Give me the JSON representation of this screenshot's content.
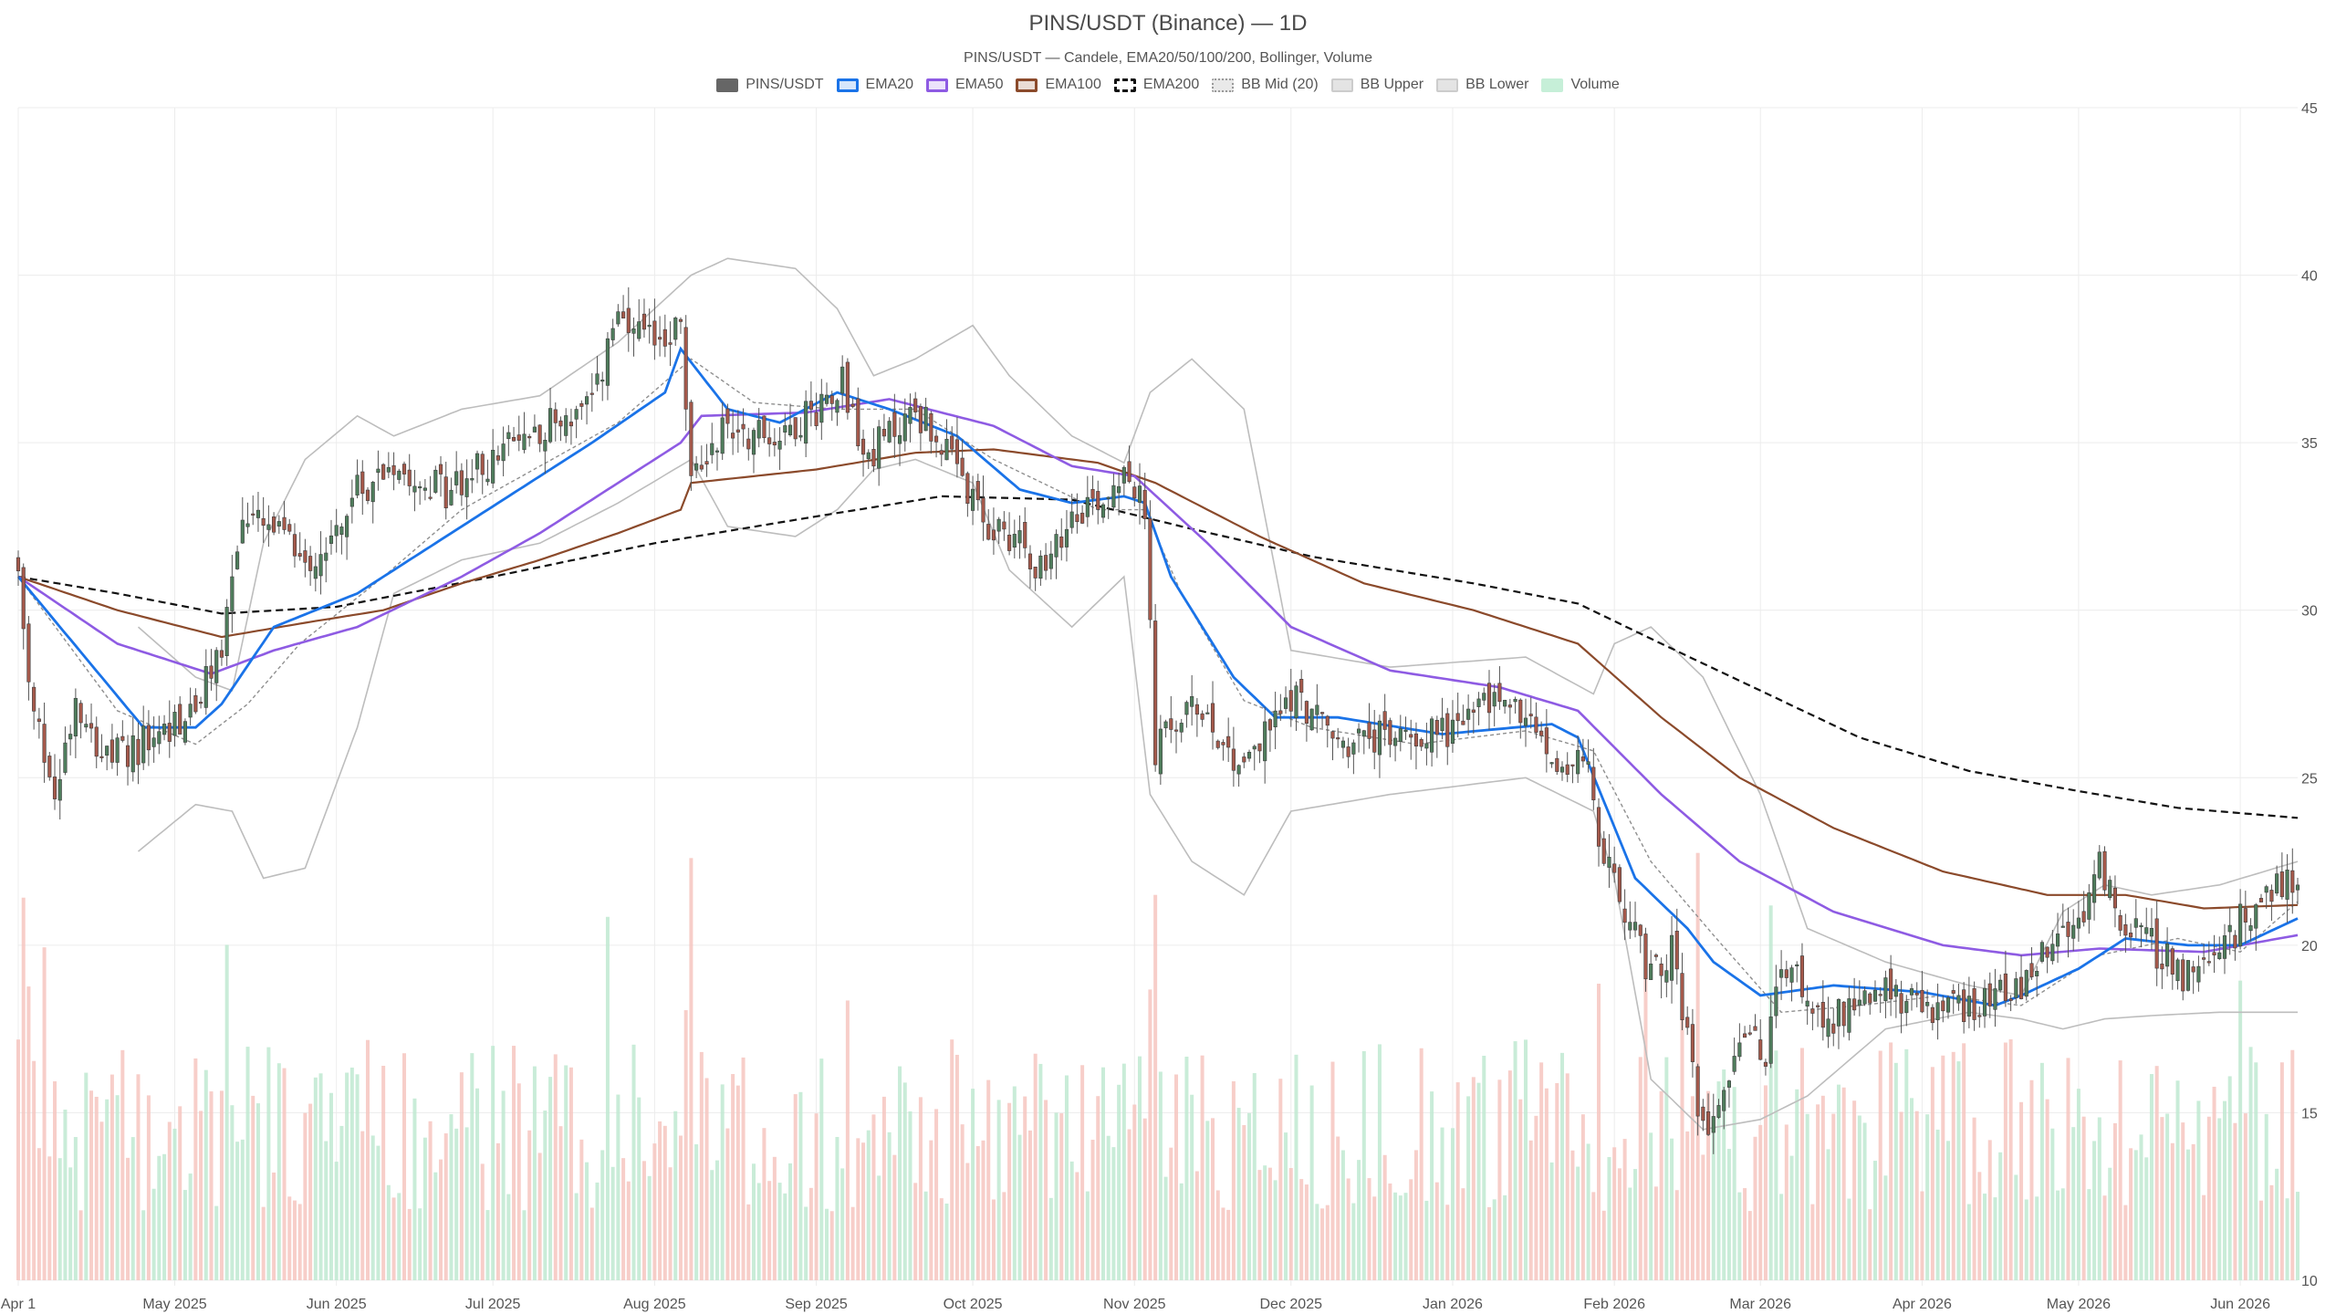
{
  "title": "PINS/USDT (Binance) — 1D",
  "subtitle": "PINS/USDT — Candele, EMA20/50/100/200, Bollinger, Volume",
  "colors": {
    "up": "#4f7d5c",
    "down": "#a5594b",
    "ema20": "#1a73e8",
    "ema50": "#8e5be3",
    "ema100": "#8b4a2b",
    "ema200": "#111111",
    "bb": "#bdbdbd",
    "vol_up": "#bfe9d1",
    "vol_down": "#f6c6c0"
  },
  "legend": [
    {
      "label": "PINS/USDT",
      "icon": "solid",
      "color": "#666666",
      "border": "#666666"
    },
    {
      "label": "EMA20",
      "icon": "line",
      "color": "#d6e6fb",
      "border": "#1a73e8"
    },
    {
      "label": "EMA50",
      "icon": "line",
      "color": "#ece3fb",
      "border": "#8e5be3"
    },
    {
      "label": "EMA100",
      "icon": "line",
      "color": "#eadcd5",
      "border": "#8b4a2b"
    },
    {
      "label": "EMA200",
      "icon": "dashed",
      "color": "#ffffff",
      "border": "#111111"
    },
    {
      "label": "BB Mid (20)",
      "icon": "dotted",
      "color": "#e9e9e9",
      "border": "#999999"
    },
    {
      "label": "BB Upper",
      "icon": "solid",
      "color": "#e4e4e4",
      "border": "#cccccc"
    },
    {
      "label": "BB Lower",
      "icon": "solid",
      "color": "#e4e4e4",
      "border": "#cccccc"
    },
    {
      "label": "Volume",
      "icon": "solid",
      "color": "#c6efd8",
      "border": "#c6efd8"
    }
  ],
  "chart_data": {
    "type": "candlestick",
    "title": "PINS/USDT (Binance) — 1D",
    "subtitle": "PINS/USDT — Candele, EMA20/50/100/200, Bollinger, Volume",
    "x_range": [
      "2025-04-01",
      "2026-06-12"
    ],
    "ylim": [
      10,
      45
    ],
    "y_ticks": [
      10,
      15,
      20,
      25,
      30,
      35,
      40,
      45
    ],
    "y_axis_side": "right",
    "x_ticks": [
      {
        "date": "2025-04-01",
        "label": "Apr 1"
      },
      {
        "date": "2025-05-01",
        "label": "May 2025"
      },
      {
        "date": "2025-06-01",
        "label": "Jun 2025"
      },
      {
        "date": "2025-07-01",
        "label": "Jul 2025"
      },
      {
        "date": "2025-08-01",
        "label": "Aug 2025"
      },
      {
        "date": "2025-09-01",
        "label": "Sep 2025"
      },
      {
        "date": "2025-10-01",
        "label": "Oct 2025"
      },
      {
        "date": "2025-11-01",
        "label": "Nov 2025"
      },
      {
        "date": "2025-12-01",
        "label": "Dec 2025"
      },
      {
        "date": "2026-01-01",
        "label": "Jan 2026"
      },
      {
        "date": "2026-02-01",
        "label": "Feb 2026"
      },
      {
        "date": "2026-03-01",
        "label": "Mar 2026"
      },
      {
        "date": "2026-04-01",
        "label": "Apr 2026"
      },
      {
        "date": "2026-05-01",
        "label": "May 2026"
      },
      {
        "date": "2026-06-01",
        "label": "Jun 2026"
      }
    ],
    "grid": true,
    "legend_position": "top-center",
    "close_keypoints": [
      [
        "2025-04-01",
        31.0
      ],
      [
        "2025-04-03",
        27.5
      ],
      [
        "2025-04-08",
        24.5
      ],
      [
        "2025-04-12",
        27.5
      ],
      [
        "2025-04-18",
        25.5
      ],
      [
        "2025-04-25",
        26.0
      ],
      [
        "2025-05-05",
        27.0
      ],
      [
        "2025-05-10",
        29.0
      ],
      [
        "2025-05-14",
        32.8
      ],
      [
        "2025-05-20",
        32.3
      ],
      [
        "2025-05-28",
        31.5
      ],
      [
        "2025-06-05",
        33.5
      ],
      [
        "2025-06-12",
        34.5
      ],
      [
        "2025-06-22",
        33.5
      ],
      [
        "2025-07-01",
        34.5
      ],
      [
        "2025-07-10",
        35.5
      ],
      [
        "2025-07-20",
        36.0
      ],
      [
        "2025-07-24",
        38.5
      ],
      [
        "2025-07-31",
        38.0
      ],
      [
        "2025-08-06",
        38.5
      ],
      [
        "2025-08-08",
        33.8
      ],
      [
        "2025-08-14",
        35.5
      ],
      [
        "2025-08-24",
        35.2
      ],
      [
        "2025-09-01",
        36.0
      ],
      [
        "2025-09-06",
        37.0
      ],
      [
        "2025-09-10",
        34.5
      ],
      [
        "2025-09-20",
        36.0
      ],
      [
        "2025-09-25",
        35.0
      ],
      [
        "2025-10-03",
        32.5
      ],
      [
        "2025-10-10",
        32.2
      ],
      [
        "2025-10-15",
        31.0
      ],
      [
        "2025-10-20",
        33.0
      ],
      [
        "2025-10-27",
        33.5
      ],
      [
        "2025-10-30",
        34.5
      ],
      [
        "2025-11-03",
        32.8
      ],
      [
        "2025-11-05",
        25.8
      ],
      [
        "2025-11-08",
        26.5
      ],
      [
        "2025-11-14",
        27.2
      ],
      [
        "2025-11-20",
        25.5
      ],
      [
        "2025-11-25",
        26.0
      ],
      [
        "2025-12-01",
        27.5
      ],
      [
        "2025-12-05",
        27.0
      ],
      [
        "2025-12-10",
        26.0
      ],
      [
        "2025-12-20",
        26.2
      ],
      [
        "2026-01-01",
        26.5
      ],
      [
        "2026-01-10",
        27.5
      ],
      [
        "2026-01-16",
        26.5
      ],
      [
        "2026-01-22",
        25.2
      ],
      [
        "2026-01-26",
        25.8
      ],
      [
        "2026-01-30",
        22.5
      ],
      [
        "2026-02-05",
        20.5
      ],
      [
        "2026-02-08",
        19.0
      ],
      [
        "2026-02-12",
        20.0
      ],
      [
        "2026-02-15",
        17.0
      ],
      [
        "2026-02-18",
        14.5
      ],
      [
        "2026-02-22",
        16.0
      ],
      [
        "2026-02-26",
        17.5
      ],
      [
        "2026-03-02",
        16.5
      ],
      [
        "2026-03-05",
        19.5
      ],
      [
        "2026-03-10",
        18.5
      ],
      [
        "2026-03-15",
        17.8
      ],
      [
        "2026-03-20",
        18.6
      ],
      [
        "2026-03-28",
        18.5
      ],
      [
        "2026-04-01",
        18.0
      ],
      [
        "2026-04-10",
        18.2
      ],
      [
        "2026-04-16",
        18.8
      ],
      [
        "2026-04-20",
        18.5
      ],
      [
        "2026-04-25",
        20.0
      ],
      [
        "2026-05-01",
        20.5
      ],
      [
        "2026-05-05",
        22.5
      ],
      [
        "2026-05-08",
        21.0
      ],
      [
        "2026-05-12",
        20.5
      ],
      [
        "2026-05-18",
        19.5
      ],
      [
        "2026-05-22",
        19.0
      ],
      [
        "2026-05-28",
        19.5
      ],
      [
        "2026-06-02",
        21.0
      ],
      [
        "2026-06-06",
        21.5
      ],
      [
        "2026-06-10",
        22.0
      ],
      [
        "2026-06-12",
        21.8
      ]
    ],
    "ema20_points": [
      [
        "2025-04-01",
        31.0
      ],
      [
        "2025-04-25",
        26.5
      ],
      [
        "2025-05-05",
        26.5
      ],
      [
        "2025-05-10",
        27.2
      ],
      [
        "2025-05-20",
        29.5
      ],
      [
        "2025-06-05",
        30.5
      ],
      [
        "2025-06-20",
        32.0
      ],
      [
        "2025-07-05",
        33.5
      ],
      [
        "2025-07-20",
        35.0
      ],
      [
        "2025-08-03",
        36.5
      ],
      [
        "2025-08-06",
        37.8
      ],
      [
        "2025-08-15",
        36.0
      ],
      [
        "2025-08-25",
        35.6
      ],
      [
        "2025-09-05",
        36.5
      ],
      [
        "2025-09-15",
        36.0
      ],
      [
        "2025-09-28",
        35.2
      ],
      [
        "2025-10-10",
        33.6
      ],
      [
        "2025-10-20",
        33.2
      ],
      [
        "2025-10-30",
        33.4
      ],
      [
        "2025-11-03",
        33.2
      ],
      [
        "2025-11-08",
        31.0
      ],
      [
        "2025-11-20",
        28.0
      ],
      [
        "2025-11-28",
        26.8
      ],
      [
        "2025-12-10",
        26.8
      ],
      [
        "2025-12-30",
        26.3
      ],
      [
        "2026-01-20",
        26.6
      ],
      [
        "2026-01-25",
        26.2
      ],
      [
        "2026-02-05",
        22.0
      ],
      [
        "2026-02-15",
        20.5
      ],
      [
        "2026-02-20",
        19.5
      ],
      [
        "2026-03-01",
        18.5
      ],
      [
        "2026-03-15",
        18.8
      ],
      [
        "2026-04-01",
        18.6
      ],
      [
        "2026-04-15",
        18.2
      ],
      [
        "2026-04-20",
        18.5
      ],
      [
        "2026-05-01",
        19.3
      ],
      [
        "2026-05-10",
        20.2
      ],
      [
        "2026-05-22",
        20.0
      ],
      [
        "2026-06-01",
        20.0
      ],
      [
        "2026-06-12",
        20.8
      ]
    ],
    "ema50_points": [
      [
        "2025-04-01",
        31.0
      ],
      [
        "2025-04-20",
        29.0
      ],
      [
        "2025-05-08",
        28.1
      ],
      [
        "2025-05-20",
        28.8
      ],
      [
        "2025-06-05",
        29.5
      ],
      [
        "2025-06-25",
        31.0
      ],
      [
        "2025-07-10",
        32.3
      ],
      [
        "2025-07-25",
        33.8
      ],
      [
        "2025-08-06",
        35.0
      ],
      [
        "2025-08-10",
        35.8
      ],
      [
        "2025-08-30",
        35.9
      ],
      [
        "2025-09-15",
        36.3
      ],
      [
        "2025-10-05",
        35.5
      ],
      [
        "2025-10-20",
        34.3
      ],
      [
        "2025-11-01",
        34.0
      ],
      [
        "2025-11-15",
        32.0
      ],
      [
        "2025-12-01",
        29.5
      ],
      [
        "2025-12-20",
        28.2
      ],
      [
        "2026-01-10",
        27.7
      ],
      [
        "2026-01-25",
        27.0
      ],
      [
        "2026-02-10",
        24.5
      ],
      [
        "2026-02-25",
        22.5
      ],
      [
        "2026-03-15",
        21.0
      ],
      [
        "2026-04-05",
        20.0
      ],
      [
        "2026-04-20",
        19.7
      ],
      [
        "2026-05-05",
        19.9
      ],
      [
        "2026-05-25",
        19.8
      ],
      [
        "2026-06-12",
        20.3
      ]
    ],
    "ema100_points": [
      [
        "2025-04-01",
        31.0
      ],
      [
        "2025-04-20",
        30.0
      ],
      [
        "2025-05-10",
        29.2
      ],
      [
        "2025-05-25",
        29.6
      ],
      [
        "2025-06-10",
        30.0
      ],
      [
        "2025-06-25",
        30.8
      ],
      [
        "2025-07-10",
        31.5
      ],
      [
        "2025-07-25",
        32.3
      ],
      [
        "2025-08-06",
        33.0
      ],
      [
        "2025-08-08",
        33.8
      ],
      [
        "2025-09-01",
        34.2
      ],
      [
        "2025-09-20",
        34.7
      ],
      [
        "2025-10-05",
        34.8
      ],
      [
        "2025-10-25",
        34.4
      ],
      [
        "2025-11-05",
        33.8
      ],
      [
        "2025-11-25",
        32.2
      ],
      [
        "2025-12-15",
        30.8
      ],
      [
        "2026-01-05",
        30.0
      ],
      [
        "2026-01-25",
        29.0
      ],
      [
        "2026-02-10",
        26.8
      ],
      [
        "2026-02-25",
        25.0
      ],
      [
        "2026-03-15",
        23.5
      ],
      [
        "2026-04-05",
        22.2
      ],
      [
        "2026-04-25",
        21.5
      ],
      [
        "2026-05-10",
        21.5
      ],
      [
        "2026-05-25",
        21.1
      ],
      [
        "2026-06-12",
        21.2
      ]
    ],
    "ema200_points": [
      [
        "2025-04-01",
        31.0
      ],
      [
        "2025-04-20",
        30.5
      ],
      [
        "2025-05-10",
        29.9
      ],
      [
        "2025-06-01",
        30.1
      ],
      [
        "2025-07-01",
        31.0
      ],
      [
        "2025-08-01",
        32.0
      ],
      [
        "2025-09-01",
        32.8
      ],
      [
        "2025-09-25",
        33.4
      ],
      [
        "2025-10-20",
        33.3
      ],
      [
        "2025-11-10",
        32.5
      ],
      [
        "2025-12-05",
        31.6
      ],
      [
        "2026-01-05",
        30.8
      ],
      [
        "2026-01-25",
        30.2
      ],
      [
        "2026-02-10",
        29.0
      ],
      [
        "2026-03-01",
        27.6
      ],
      [
        "2026-03-20",
        26.2
      ],
      [
        "2026-04-10",
        25.2
      ],
      [
        "2026-05-01",
        24.6
      ],
      [
        "2026-05-20",
        24.1
      ],
      [
        "2026-06-12",
        23.8
      ]
    ],
    "bb_mid_points": [
      [
        "2025-04-01",
        31.0
      ],
      [
        "2025-04-20",
        27.0
      ],
      [
        "2025-05-05",
        26.0
      ],
      [
        "2025-05-15",
        27.2
      ],
      [
        "2025-05-25",
        29.0
      ],
      [
        "2025-06-10",
        31.0
      ],
      [
        "2025-06-25",
        33.0
      ],
      [
        "2025-07-10",
        34.3
      ],
      [
        "2025-07-25",
        35.6
      ],
      [
        "2025-08-08",
        37.5
      ],
      [
        "2025-08-20",
        36.2
      ],
      [
        "2025-09-05",
        36.0
      ],
      [
        "2025-09-20",
        36.0
      ],
      [
        "2025-10-05",
        34.5
      ],
      [
        "2025-10-25",
        33.0
      ],
      [
        "2025-11-03",
        33.0
      ],
      [
        "2025-11-10",
        30.5
      ],
      [
        "2025-11-22",
        27.3
      ],
      [
        "2025-12-05",
        26.5
      ],
      [
        "2025-12-25",
        26.0
      ],
      [
        "2026-01-15",
        26.4
      ],
      [
        "2026-01-28",
        25.8
      ],
      [
        "2026-02-08",
        22.5
      ],
      [
        "2026-02-20",
        20.3
      ],
      [
        "2026-03-05",
        18.0
      ],
      [
        "2026-03-20",
        18.2
      ],
      [
        "2026-04-05",
        18.5
      ],
      [
        "2026-04-20",
        18.2
      ],
      [
        "2026-05-05",
        19.7
      ],
      [
        "2026-05-20",
        20.2
      ],
      [
        "2026-06-01",
        19.8
      ],
      [
        "2026-06-12",
        21.3
      ]
    ],
    "bb_upper_points": [
      [
        "2025-04-24",
        29.5
      ],
      [
        "2025-05-05",
        28.0
      ],
      [
        "2025-05-12",
        27.6
      ],
      [
        "2025-05-18",
        32.0
      ],
      [
        "2025-05-26",
        34.5
      ],
      [
        "2025-06-05",
        35.8
      ],
      [
        "2025-06-12",
        35.2
      ],
      [
        "2025-06-25",
        36.0
      ],
      [
        "2025-07-10",
        36.4
      ],
      [
        "2025-07-25",
        38.0
      ],
      [
        "2025-08-08",
        40.0
      ],
      [
        "2025-08-15",
        40.5
      ],
      [
        "2025-08-28",
        40.2
      ],
      [
        "2025-09-05",
        39.0
      ],
      [
        "2025-09-12",
        37.0
      ],
      [
        "2025-09-20",
        37.5
      ],
      [
        "2025-10-01",
        38.5
      ],
      [
        "2025-10-08",
        37.0
      ],
      [
        "2025-10-20",
        35.2
      ],
      [
        "2025-10-30",
        34.4
      ],
      [
        "2025-11-04",
        36.5
      ],
      [
        "2025-11-12",
        37.5
      ],
      [
        "2025-11-22",
        36.0
      ],
      [
        "2025-12-01",
        28.8
      ],
      [
        "2025-12-20",
        28.3
      ],
      [
        "2026-01-15",
        28.6
      ],
      [
        "2026-01-28",
        27.5
      ],
      [
        "2026-02-01",
        29.0
      ],
      [
        "2026-02-08",
        29.5
      ],
      [
        "2026-02-18",
        28.0
      ],
      [
        "2026-03-01",
        24.5
      ],
      [
        "2026-03-10",
        20.5
      ],
      [
        "2026-03-25",
        19.5
      ],
      [
        "2026-04-10",
        18.8
      ],
      [
        "2026-04-20",
        18.5
      ],
      [
        "2026-04-28",
        21.0
      ],
      [
        "2026-05-06",
        21.8
      ],
      [
        "2026-05-15",
        21.5
      ],
      [
        "2026-05-28",
        21.8
      ],
      [
        "2026-06-12",
        22.5
      ]
    ],
    "bb_lower_points": [
      [
        "2025-04-24",
        22.8
      ],
      [
        "2025-05-05",
        24.2
      ],
      [
        "2025-05-12",
        24.0
      ],
      [
        "2025-05-18",
        22.0
      ],
      [
        "2025-05-26",
        22.3
      ],
      [
        "2025-06-05",
        26.5
      ],
      [
        "2025-06-12",
        30.5
      ],
      [
        "2025-06-25",
        31.5
      ],
      [
        "2025-07-10",
        32.0
      ],
      [
        "2025-07-25",
        33.2
      ],
      [
        "2025-08-08",
        34.5
      ],
      [
        "2025-08-15",
        32.5
      ],
      [
        "2025-08-28",
        32.2
      ],
      [
        "2025-09-05",
        33.0
      ],
      [
        "2025-09-12",
        34.2
      ],
      [
        "2025-09-20",
        34.5
      ],
      [
        "2025-10-01",
        33.8
      ],
      [
        "2025-10-08",
        31.2
      ],
      [
        "2025-10-20",
        29.5
      ],
      [
        "2025-10-30",
        31.0
      ],
      [
        "2025-11-04",
        24.5
      ],
      [
        "2025-11-12",
        22.5
      ],
      [
        "2025-11-22",
        21.5
      ],
      [
        "2025-12-01",
        24.0
      ],
      [
        "2025-12-20",
        24.5
      ],
      [
        "2026-01-15",
        25.0
      ],
      [
        "2026-01-28",
        24.0
      ],
      [
        "2026-02-01",
        22.0
      ],
      [
        "2026-02-08",
        16.0
      ],
      [
        "2026-02-18",
        14.5
      ],
      [
        "2026-03-01",
        14.8
      ],
      [
        "2026-03-10",
        15.5
      ],
      [
        "2026-03-25",
        17.5
      ],
      [
        "2026-04-10",
        18.0
      ],
      [
        "2026-04-20",
        17.8
      ],
      [
        "2026-04-28",
        17.5
      ],
      [
        "2026-05-06",
        17.8
      ],
      [
        "2026-05-15",
        17.9
      ],
      [
        "2026-05-28",
        18.0
      ],
      [
        "2026-06-12",
        18.0
      ]
    ]
  }
}
